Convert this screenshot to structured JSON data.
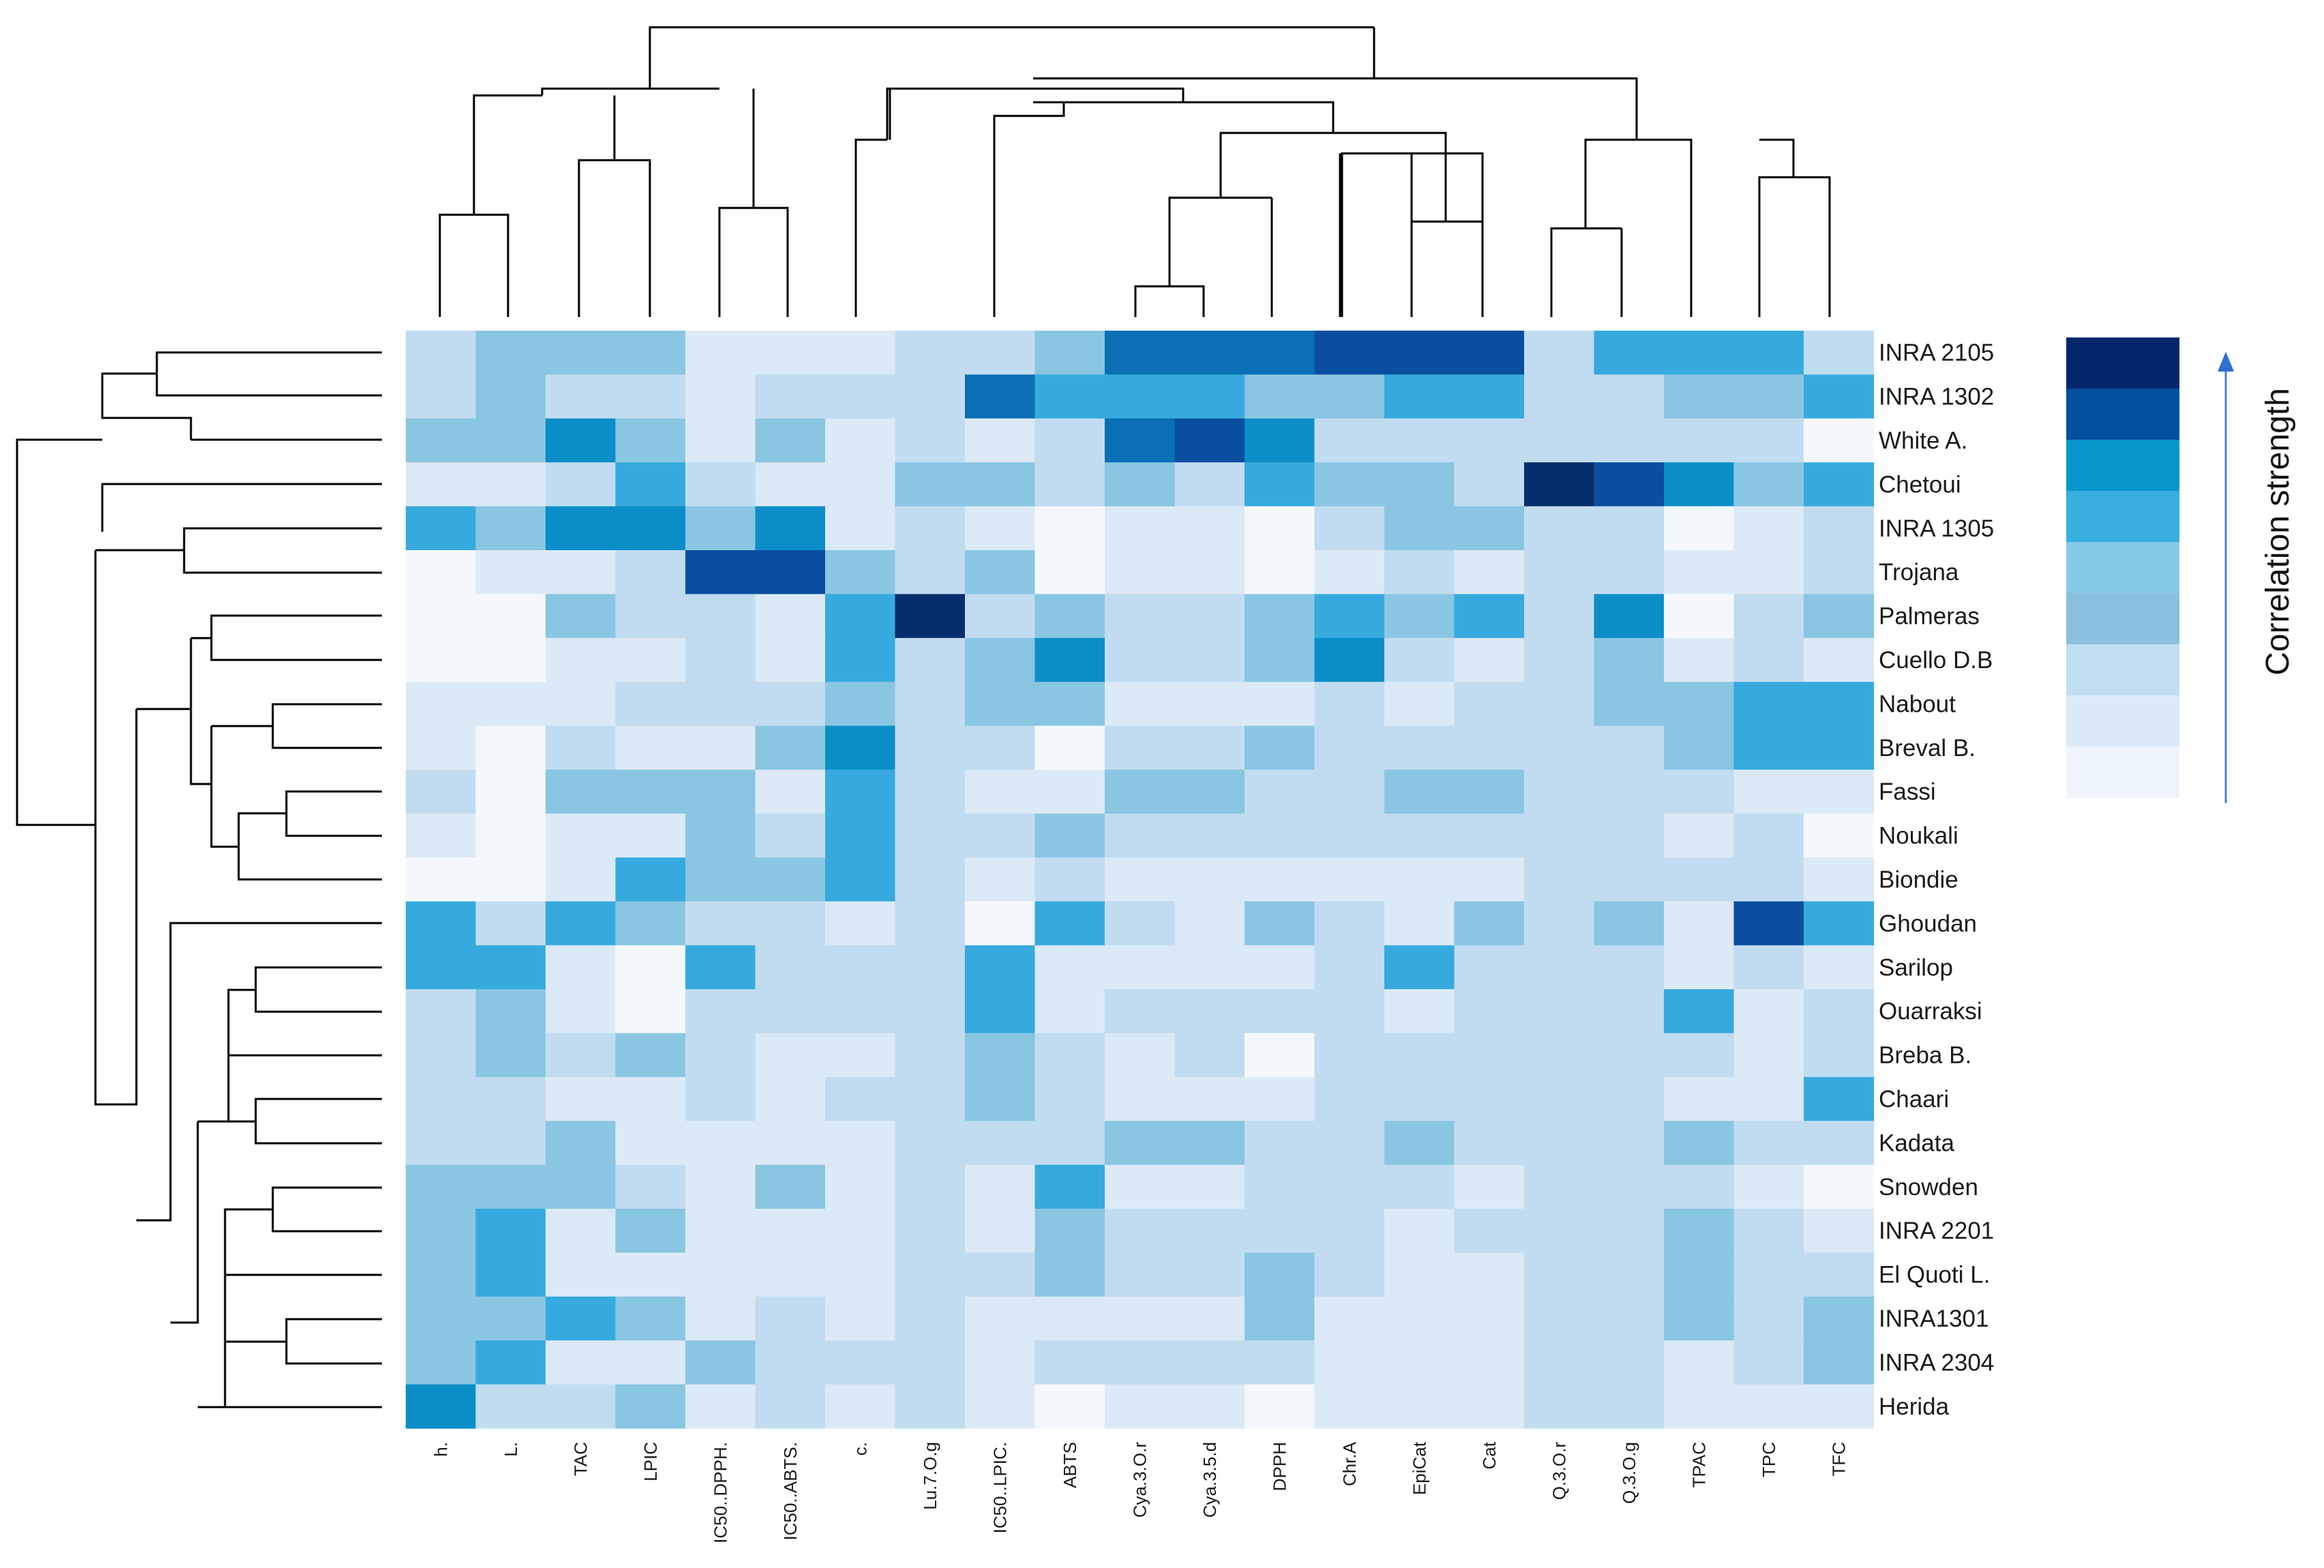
{
  "chart_data": {
    "type": "heatmap",
    "title": "",
    "colorbar_label": "Correlation strength",
    "columns": [
      "h.",
      "L.",
      "TAC",
      "LPIC",
      "IC50..DPPH.",
      "IC50..ABTS.",
      "c.",
      "Lu.7.O.g",
      "IC50..LPIC.",
      "ABTS",
      "Cya.3.O.r",
      "Cya.3.5.d",
      "DPPH",
      "Chr.A",
      "EpiCat",
      "Cat",
      "Q.3.O.r",
      "Q.3.O.g",
      "TPAC",
      "TPC",
      "TFC"
    ],
    "rows": [
      "INRA 2105",
      "INRA 1302",
      "White A.",
      "Chetoui",
      "INRA 1305",
      "Trojana",
      "Palmeras",
      "Cuello D.B",
      "Nabout",
      "Breval B.",
      "Fassi",
      "Noukali",
      "Biondie",
      "Ghoudan",
      "Sarilop",
      "Ouarraksi",
      "Breba B.",
      "Chaari",
      "Kadata",
      "Snowden",
      "INRA 2201",
      "El Quoti L.",
      "INRA1301",
      "INRA 2304",
      "Herida"
    ],
    "scale_levels": 9,
    "values": [
      [
        3,
        4,
        4,
        4,
        2,
        2,
        2,
        3,
        3,
        4,
        7,
        7,
        7,
        8,
        8,
        8,
        3,
        5,
        5,
        5,
        3
      ],
      [
        3,
        4,
        3,
        3,
        2,
        3,
        3,
        3,
        7,
        5,
        5,
        5,
        4,
        4,
        5,
        5,
        3,
        3,
        4,
        4,
        5
      ],
      [
        4,
        4,
        6,
        4,
        2,
        4,
        2,
        3,
        2,
        3,
        7,
        8,
        6,
        3,
        3,
        3,
        3,
        3,
        3,
        3,
        1
      ],
      [
        2,
        2,
        3,
        5,
        3,
        2,
        2,
        4,
        4,
        3,
        4,
        3,
        5,
        4,
        4,
        3,
        9,
        8,
        6,
        4,
        5
      ],
      [
        5,
        4,
        6,
        6,
        4,
        6,
        2,
        3,
        2,
        1,
        2,
        2,
        1,
        3,
        4,
        4,
        3,
        3,
        1,
        2,
        3
      ],
      [
        1,
        2,
        2,
        3,
        8,
        8,
        4,
        3,
        4,
        1,
        2,
        2,
        1,
        2,
        3,
        2,
        3,
        3,
        2,
        2,
        3
      ],
      [
        1,
        1,
        4,
        3,
        3,
        2,
        5,
        9,
        3,
        4,
        3,
        3,
        4,
        5,
        4,
        5,
        3,
        6,
        1,
        3,
        4
      ],
      [
        1,
        1,
        2,
        2,
        3,
        2,
        5,
        3,
        4,
        6,
        3,
        3,
        4,
        6,
        3,
        2,
        3,
        4,
        2,
        3,
        2
      ],
      [
        2,
        2,
        2,
        3,
        3,
        3,
        4,
        3,
        4,
        4,
        2,
        2,
        2,
        3,
        2,
        3,
        3,
        4,
        4,
        5,
        5
      ],
      [
        2,
        1,
        3,
        2,
        2,
        4,
        6,
        3,
        3,
        1,
        3,
        3,
        4,
        3,
        3,
        3,
        3,
        3,
        4,
        5,
        5
      ],
      [
        3,
        1,
        4,
        4,
        4,
        2,
        5,
        3,
        2,
        2,
        4,
        4,
        3,
        3,
        4,
        4,
        3,
        3,
        3,
        2,
        2
      ],
      [
        2,
        1,
        2,
        2,
        4,
        3,
        5,
        3,
        3,
        4,
        3,
        3,
        3,
        3,
        3,
        3,
        3,
        3,
        2,
        3,
        1
      ],
      [
        1,
        1,
        2,
        5,
        4,
        4,
        5,
        3,
        2,
        3,
        2,
        2,
        2,
        2,
        2,
        2,
        3,
        3,
        3,
        3,
        2
      ],
      [
        5,
        3,
        5,
        4,
        3,
        3,
        2,
        3,
        1,
        5,
        3,
        2,
        4,
        3,
        2,
        4,
        3,
        4,
        2,
        8,
        5
      ],
      [
        5,
        5,
        2,
        1,
        5,
        3,
        3,
        3,
        5,
        2,
        2,
        2,
        2,
        3,
        5,
        3,
        3,
        3,
        2,
        3,
        2
      ],
      [
        3,
        4,
        2,
        1,
        3,
        3,
        3,
        3,
        5,
        2,
        3,
        3,
        3,
        3,
        2,
        3,
        3,
        3,
        5,
        2,
        3
      ],
      [
        3,
        4,
        3,
        4,
        3,
        2,
        2,
        3,
        4,
        3,
        2,
        3,
        1,
        3,
        3,
        3,
        3,
        3,
        3,
        2,
        3
      ],
      [
        3,
        3,
        2,
        2,
        3,
        2,
        3,
        3,
        4,
        3,
        2,
        2,
        2,
        3,
        3,
        3,
        3,
        3,
        2,
        2,
        5
      ],
      [
        3,
        3,
        4,
        2,
        2,
        2,
        2,
        3,
        3,
        3,
        4,
        4,
        3,
        3,
        4,
        3,
        3,
        3,
        4,
        3,
        3
      ],
      [
        4,
        4,
        4,
        3,
        2,
        4,
        2,
        3,
        2,
        5,
        2,
        2,
        3,
        3,
        3,
        2,
        3,
        3,
        3,
        2,
        1
      ],
      [
        4,
        5,
        2,
        4,
        2,
        2,
        2,
        3,
        2,
        4,
        3,
        3,
        3,
        3,
        2,
        3,
        3,
        3,
        4,
        3,
        2
      ],
      [
        4,
        5,
        2,
        2,
        2,
        2,
        2,
        3,
        3,
        4,
        3,
        3,
        4,
        3,
        2,
        2,
        3,
        3,
        4,
        3,
        3
      ],
      [
        4,
        4,
        5,
        4,
        2,
        3,
        2,
        3,
        2,
        2,
        2,
        2,
        4,
        2,
        2,
        2,
        3,
        3,
        4,
        3,
        4
      ],
      [
        4,
        5,
        2,
        2,
        4,
        3,
        3,
        3,
        2,
        3,
        3,
        3,
        3,
        2,
        2,
        2,
        3,
        3,
        2,
        3,
        4
      ],
      [
        6,
        3,
        3,
        4,
        2,
        3,
        2,
        3,
        2,
        1,
        2,
        2,
        1,
        2,
        2,
        2,
        3,
        3,
        2,
        2,
        2
      ]
    ],
    "palette": [
      "#f4f8fd",
      "#dce9f6",
      "#c1dcf0",
      "#89c6e2",
      "#36aade",
      "#0b8ec8",
      "#0a6fb5",
      "#0b4ea0",
      "#052e6b"
    ],
    "colorbar_swatches": [
      "#04276b",
      "#0350a0",
      "#0696cc",
      "#38afdf",
      "#86cbe6",
      "#89c0de",
      "#c1ddf2",
      "#dce9f6",
      "#eef4fc"
    ]
  }
}
